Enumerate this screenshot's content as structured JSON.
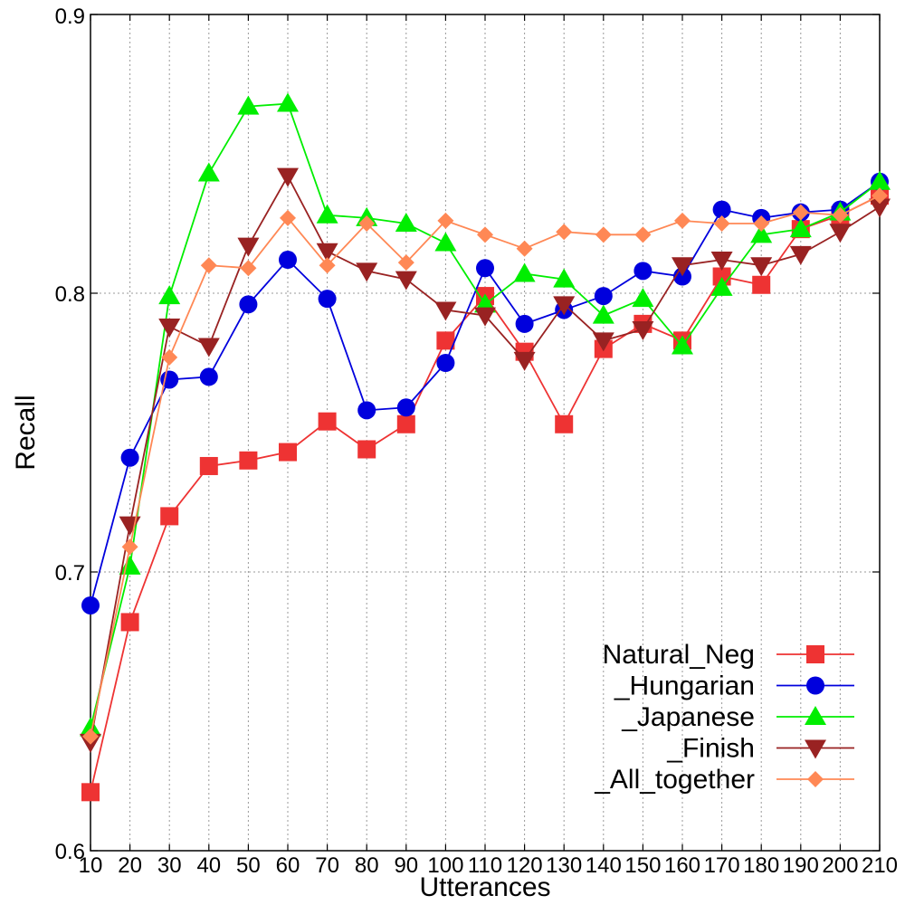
{
  "chart_data": {
    "type": "line",
    "title": "",
    "xlabel": "Utterances",
    "ylabel": "Recall",
    "xlim": [
      10,
      210
    ],
    "ylim": [
      0.6,
      0.9
    ],
    "x": [
      10,
      20,
      30,
      40,
      50,
      60,
      70,
      80,
      90,
      100,
      110,
      120,
      130,
      140,
      150,
      160,
      170,
      180,
      190,
      200,
      210
    ],
    "x_tick_labels": [
      "10",
      "20",
      "30",
      "40",
      "50",
      "60",
      "70",
      "80",
      "90",
      "100",
      "110",
      "120",
      "130",
      "140",
      "150",
      "160",
      "170",
      "180",
      "190",
      "200",
      "210"
    ],
    "y_ticks": [
      0.6,
      0.7,
      0.8,
      0.9
    ],
    "y_tick_labels": [
      "0.6",
      "0.7",
      "0.8",
      "0.9"
    ],
    "grid": true,
    "legend_position": "bottom-right",
    "series": [
      {
        "name": "Natural_Neg",
        "color": "#ee3333",
        "marker": "square",
        "values": [
          0.621,
          0.682,
          0.72,
          0.738,
          0.74,
          0.743,
          0.754,
          0.744,
          0.753,
          0.783,
          0.799,
          0.779,
          0.753,
          0.78,
          0.789,
          0.783,
          0.806,
          0.803,
          0.823,
          0.828,
          0.835
        ]
      },
      {
        "name": "_Hungarian",
        "color": "#0000dd",
        "marker": "circle",
        "values": [
          0.688,
          0.741,
          0.769,
          0.77,
          0.796,
          0.812,
          0.798,
          0.758,
          0.759,
          0.775,
          0.809,
          0.789,
          0.794,
          0.799,
          0.808,
          0.806,
          0.83,
          0.827,
          0.829,
          0.83,
          0.84
        ]
      },
      {
        "name": "_Japanese",
        "color": "#00ee00",
        "marker": "triangle-up",
        "values": [
          0.644,
          0.702,
          0.799,
          0.843,
          0.867,
          0.868,
          0.828,
          0.827,
          0.825,
          0.818,
          0.796,
          0.807,
          0.805,
          0.792,
          0.798,
          0.781,
          0.802,
          0.821,
          0.823,
          0.829,
          0.84
        ]
      },
      {
        "name": "_Finish",
        "color": "#992222",
        "marker": "triangle-down",
        "values": [
          0.639,
          0.717,
          0.788,
          0.781,
          0.817,
          0.842,
          0.815,
          0.808,
          0.805,
          0.794,
          0.792,
          0.776,
          0.796,
          0.783,
          0.787,
          0.81,
          0.812,
          0.81,
          0.814,
          0.822,
          0.831
        ]
      },
      {
        "name": "_All_together",
        "color": "#ff8855",
        "marker": "diamond",
        "values": [
          0.641,
          0.709,
          0.777,
          0.81,
          0.809,
          0.827,
          0.81,
          0.825,
          0.811,
          0.826,
          0.821,
          0.816,
          0.822,
          0.821,
          0.821,
          0.826,
          0.825,
          0.825,
          0.829,
          0.828,
          0.835
        ]
      }
    ]
  }
}
